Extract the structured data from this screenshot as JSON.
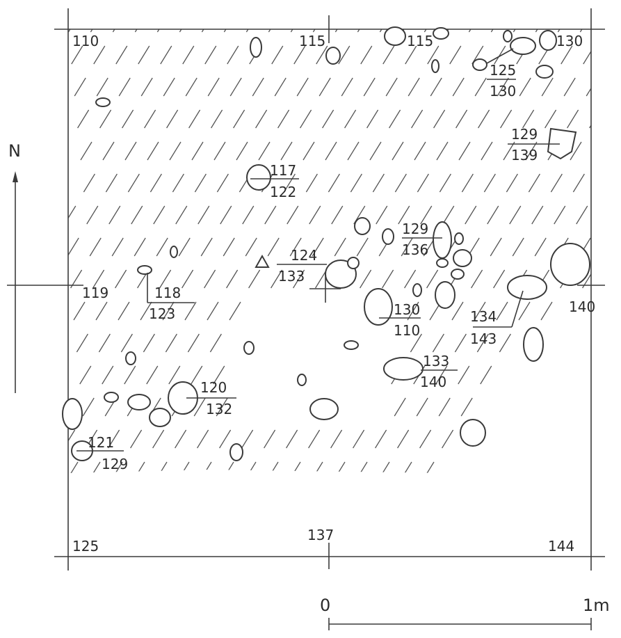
{
  "north_label": "N",
  "corner_elevations": {
    "nw": "110",
    "n": "115",
    "ne": "130",
    "w": "119",
    "e": "140",
    "sw": "125",
    "s": "137",
    "se": "144"
  },
  "inner_elevations": {
    "n2": "115"
  },
  "stone_labels": [
    {
      "top": "125",
      "bottom": "130"
    },
    {
      "top": "129",
      "bottom": "139"
    },
    {
      "top": "117",
      "bottom": "122"
    },
    {
      "top": "129",
      "bottom": "136"
    },
    {
      "top": "124",
      "bottom": "133"
    },
    {
      "top": "118",
      "bottom": "123"
    },
    {
      "top": "130",
      "bottom": "110"
    },
    {
      "top": "134",
      "bottom": "143"
    },
    {
      "top": "133",
      "bottom": "140"
    },
    {
      "top": "120",
      "bottom": "132"
    },
    {
      "top": "121",
      "bottom": "129"
    }
  ],
  "scale": {
    "start": "0",
    "end": "1m"
  }
}
